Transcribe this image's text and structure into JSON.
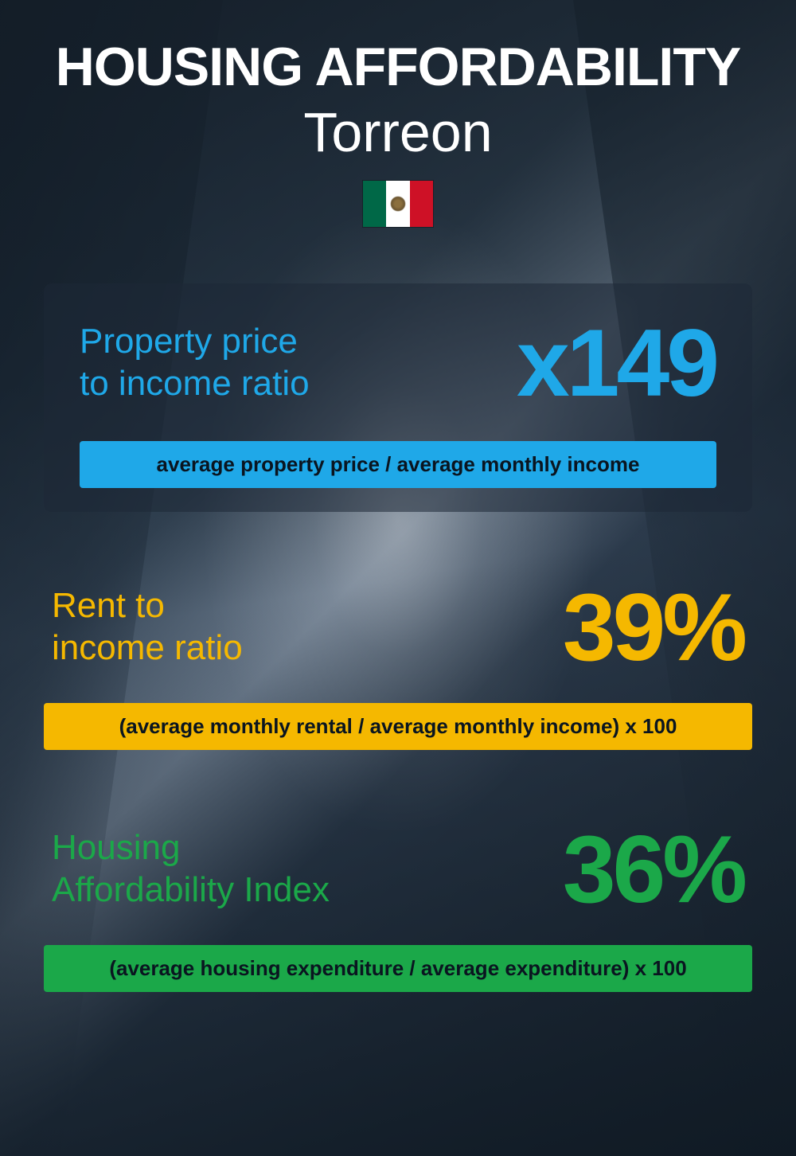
{
  "header": {
    "title": "HOUSING AFFORDABILITY",
    "subtitle": "Torreon",
    "flag_colors": {
      "left": "#006847",
      "center": "#ffffff",
      "right": "#ce1126"
    }
  },
  "metrics": [
    {
      "label_line1": "Property price",
      "label_line2": "to income ratio",
      "value": "x149",
      "color": "#1fa8e8",
      "formula": "average property price / average monthly income",
      "formula_bg": "#1fa8e8",
      "has_card_bg": true
    },
    {
      "label_line1": "Rent to",
      "label_line2": "income ratio",
      "value": "39%",
      "color": "#f5b800",
      "formula": "(average monthly rental / average monthly income) x 100",
      "formula_bg": "#f5b800",
      "has_card_bg": false
    },
    {
      "label_line1": "Housing",
      "label_line2": "Affordability Index",
      "value": "36%",
      "color": "#1ba849",
      "formula": "(average housing expenditure / average expenditure) x 100",
      "formula_bg": "#1ba849",
      "has_card_bg": false
    }
  ],
  "styling": {
    "title_color": "#ffffff",
    "title_fontsize": 68,
    "subtitle_fontsize": 70,
    "metric_label_fontsize": 44,
    "metric_value_fontsize": 120,
    "formula_fontsize": 26,
    "formula_text_color": "#0a1520",
    "card_bg": "rgba(30, 40, 55, 0.55)",
    "container_width": 1000,
    "container_height": 1452
  }
}
